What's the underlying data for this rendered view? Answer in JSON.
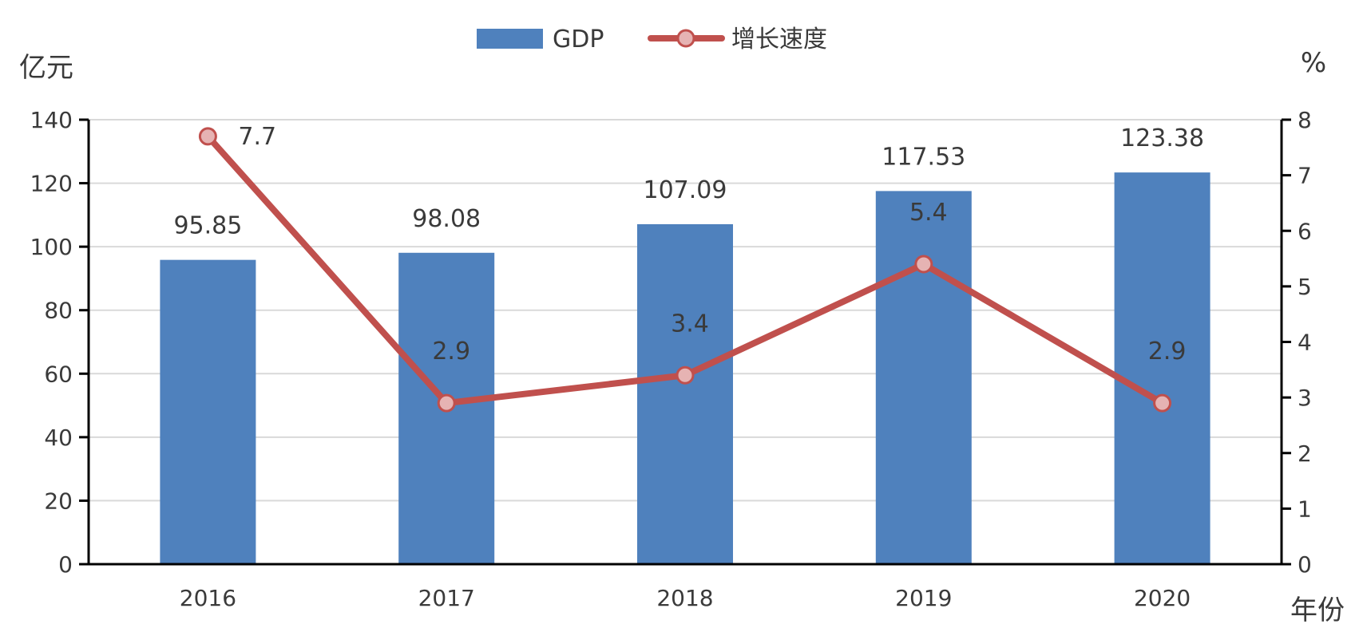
{
  "chart_data": {
    "type": "bar",
    "categories": [
      "2016",
      "2017",
      "2018",
      "2019",
      "2020"
    ],
    "series": [
      {
        "name": "GDP",
        "type": "bar",
        "axis": "left",
        "values": [
          95.85,
          98.08,
          107.09,
          117.53,
          123.38
        ],
        "labels": [
          "95.85",
          "98.08",
          "107.09",
          "117.53",
          "123.38"
        ],
        "color": "#4f81bd"
      },
      {
        "name": "增长速度",
        "type": "line",
        "axis": "right",
        "values": [
          7.7,
          2.9,
          3.4,
          5.4,
          2.9
        ],
        "labels": [
          "7.7",
          "2.9",
          "3.4",
          "5.4",
          "2.9"
        ],
        "color": "#c0504d",
        "marker_fill": "#e6b3b3"
      }
    ],
    "left_axis": {
      "unit": "亿元",
      "range": [
        0,
        140
      ],
      "ticks": [
        "0",
        "20",
        "40",
        "60",
        "80",
        "100",
        "120",
        "140"
      ]
    },
    "right_axis": {
      "unit": "%",
      "range": [
        0,
        8
      ],
      "ticks": [
        "0",
        "1",
        "2",
        "3",
        "4",
        "5",
        "6",
        "7",
        "8"
      ]
    },
    "x_axis": {
      "unit": "年份"
    },
    "grid": true,
    "legend_position": "top-center"
  }
}
